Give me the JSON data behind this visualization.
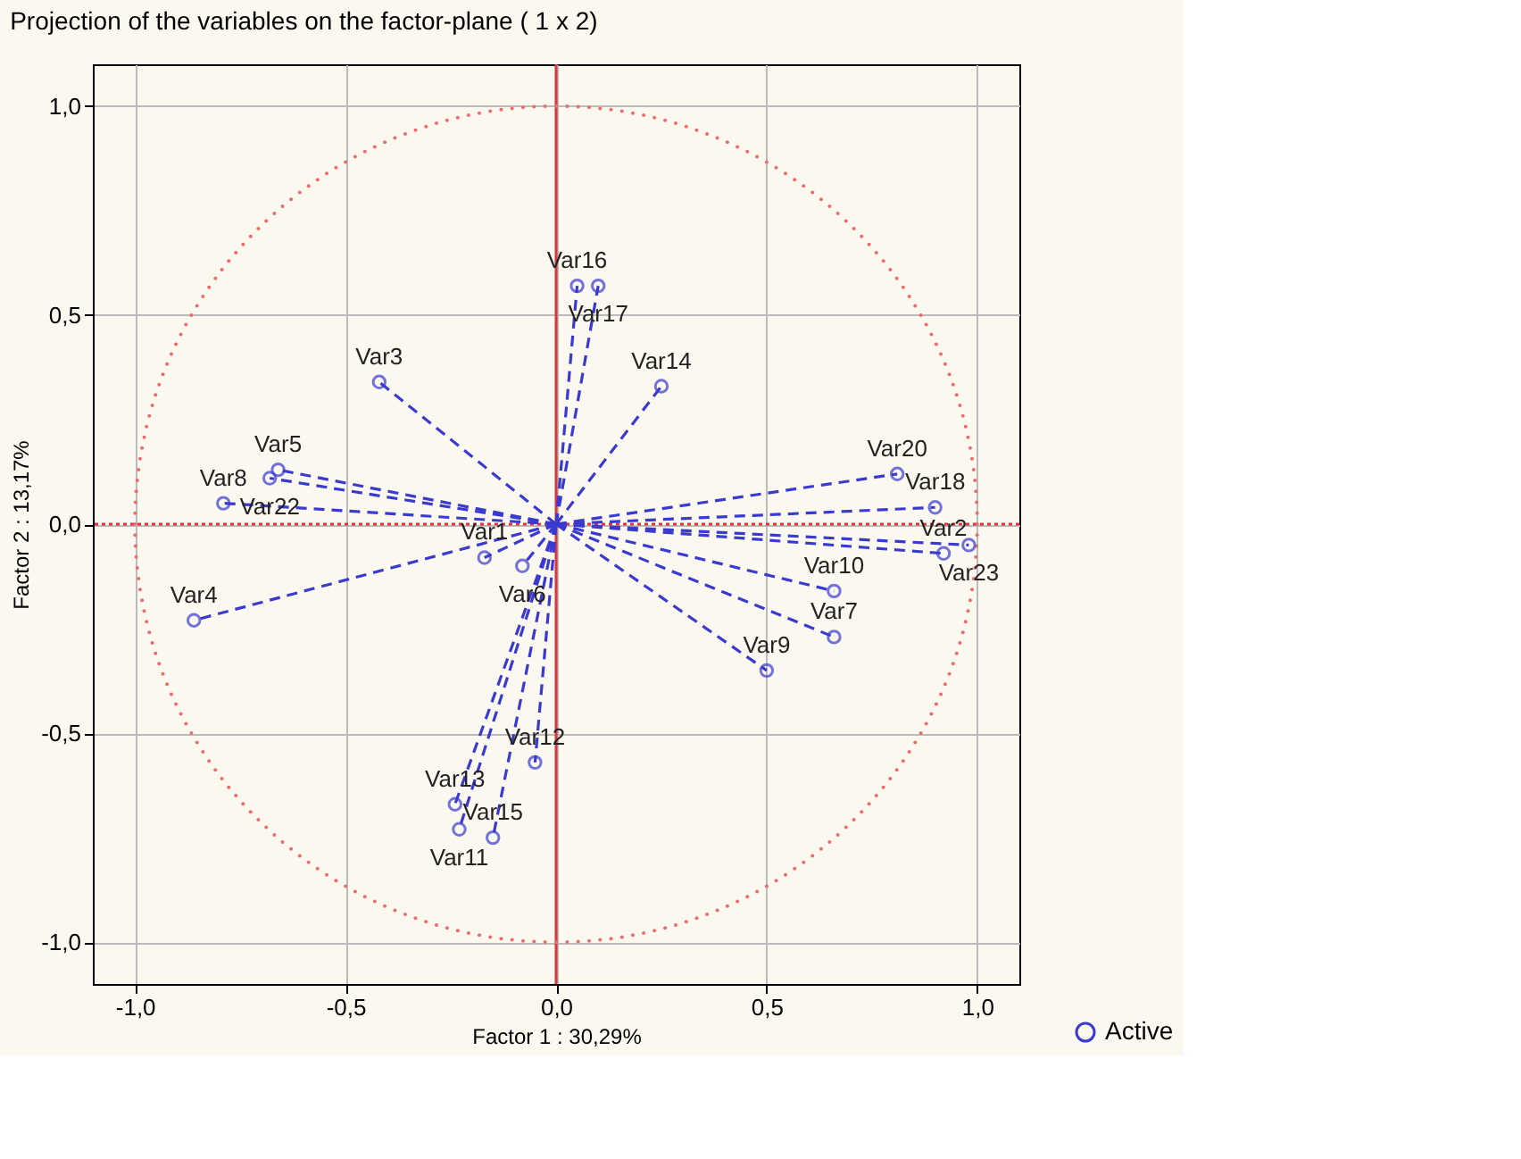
{
  "chart_data": {
    "type": "scatter",
    "title": "Projection of the variables on the factor-plane ( 1 x  2)",
    "xlabel": "Factor 1 : 30,29%",
    "ylabel": "Factor 2 : 13,17%",
    "xlim": [
      -1.1,
      1.1
    ],
    "ylim": [
      -1.1,
      1.1
    ],
    "xticks": [
      {
        "value": -1,
        "label": "-1,0"
      },
      {
        "value": -0.5,
        "label": "-0,5"
      },
      {
        "value": 0,
        "label": "0,0"
      },
      {
        "value": 0.5,
        "label": "0,5"
      },
      {
        "value": 1,
        "label": "1,0"
      }
    ],
    "yticks": [
      {
        "value": -1,
        "label": "-1,0"
      },
      {
        "value": -0.5,
        "label": "-0,5"
      },
      {
        "value": 0,
        "label": "0,0"
      },
      {
        "value": 0.5,
        "label": "0,5"
      },
      {
        "value": 1,
        "label": "1,0"
      }
    ],
    "grid": true,
    "legend": "bottom right",
    "marker": "circle",
    "line_style": "dashed",
    "series": [
      {
        "name": "Active",
        "color": "#3a3ad0",
        "x": [
          -0.17,
          -0.08,
          -0.42,
          -0.86,
          -0.66,
          -0.68,
          -0.79,
          0.05,
          0.1,
          0.25,
          0.81,
          0.9,
          0.92,
          0.98,
          0.66,
          0.66,
          0.5,
          -0.05,
          -0.24,
          -0.23,
          -0.15
        ],
        "values": [
          -0.08,
          -0.1,
          0.34,
          -0.23,
          0.13,
          0.11,
          0.05,
          0.57,
          0.57,
          0.33,
          0.12,
          0.04,
          -0.07,
          -0.05,
          -0.16,
          -0.27,
          -0.35,
          -0.57,
          -0.67,
          -0.73,
          -0.75
        ]
      }
    ],
    "ref_lines": [
      {
        "axis": "x",
        "value": 0,
        "color": "#e8303a",
        "line_style": "solid"
      },
      {
        "axis": "y",
        "value": 0,
        "color": "#e8303a",
        "line_style": "dotted"
      }
    ],
    "annotations": [
      {
        "text": "Var1",
        "x": -0.17,
        "y": -0.08
      },
      {
        "text": "Var6",
        "x": -0.08,
        "y": -0.1
      },
      {
        "text": "Var3",
        "x": -0.42,
        "y": 0.34
      },
      {
        "text": "Var4",
        "x": -0.86,
        "y": -0.23
      },
      {
        "text": "Var5",
        "x": -0.66,
        "y": 0.13
      },
      {
        "text": "Var22",
        "x": -0.68,
        "y": 0.11
      },
      {
        "text": "Var8",
        "x": -0.79,
        "y": 0.05
      },
      {
        "text": "Var16",
        "x": 0.05,
        "y": 0.57
      },
      {
        "text": "Var17",
        "x": 0.1,
        "y": 0.57
      },
      {
        "text": "Var14",
        "x": 0.25,
        "y": 0.33
      },
      {
        "text": "Var20",
        "x": 0.81,
        "y": 0.12
      },
      {
        "text": "Var18",
        "x": 0.9,
        "y": 0.04
      },
      {
        "text": "Var2",
        "x": 0.92,
        "y": -0.07
      },
      {
        "text": "Var23",
        "x": 0.98,
        "y": -0.05
      },
      {
        "text": "Var10",
        "x": 0.66,
        "y": -0.16
      },
      {
        "text": "Var7",
        "x": 0.66,
        "y": -0.27
      },
      {
        "text": "Var9",
        "x": 0.5,
        "y": -0.35
      },
      {
        "text": "Var12",
        "x": -0.05,
        "y": -0.57
      },
      {
        "text": "Var13",
        "x": -0.24,
        "y": -0.67
      },
      {
        "text": "Var11",
        "x": -0.23,
        "y": -0.73
      },
      {
        "text": "Var15",
        "x": -0.15,
        "y": -0.75
      }
    ]
  }
}
